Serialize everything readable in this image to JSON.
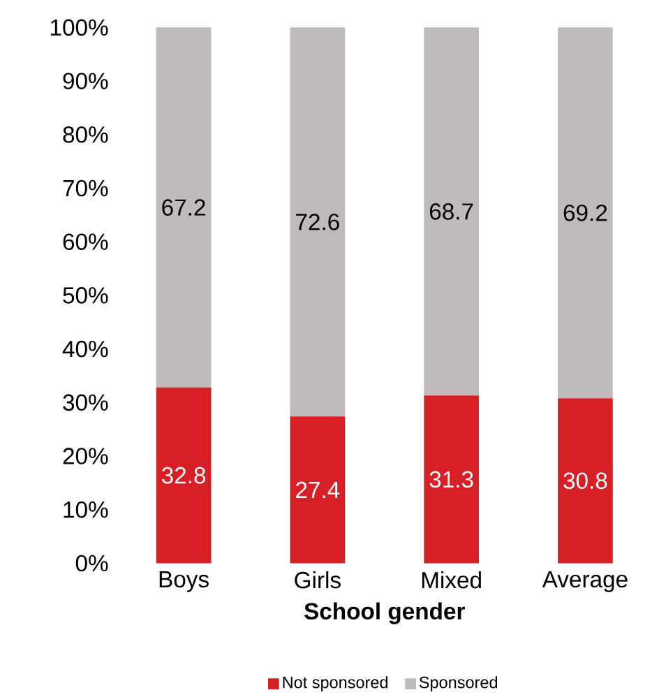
{
  "chart_data": {
    "type": "bar",
    "stacked": true,
    "xlabel": "School gender",
    "categories": [
      "Boys",
      "Girls",
      "Mixed",
      "Average"
    ],
    "series": [
      {
        "name": "Not sponsored",
        "color": "#d71f26",
        "values": [
          32.8,
          27.4,
          31.3,
          30.8
        ]
      },
      {
        "name": "Sponsored",
        "color": "#bfbbbb",
        "values": [
          67.2,
          72.6,
          68.7,
          69.2
        ]
      }
    ],
    "ylim": [
      0,
      100
    ],
    "yticks": [
      {
        "value": 0,
        "label": "0%"
      },
      {
        "value": 10,
        "label": "10%"
      },
      {
        "value": 20,
        "label": "20%"
      },
      {
        "value": 30,
        "label": "30%"
      },
      {
        "value": 40,
        "label": "40%"
      },
      {
        "value": 50,
        "label": "50%"
      },
      {
        "value": 60,
        "label": "60%"
      },
      {
        "value": 70,
        "label": "70%"
      },
      {
        "value": 80,
        "label": "80%"
      },
      {
        "value": 90,
        "label": "90%"
      },
      {
        "value": 100,
        "label": "100%"
      }
    ],
    "data_labels": true,
    "grid": false,
    "legend": "bottom"
  }
}
